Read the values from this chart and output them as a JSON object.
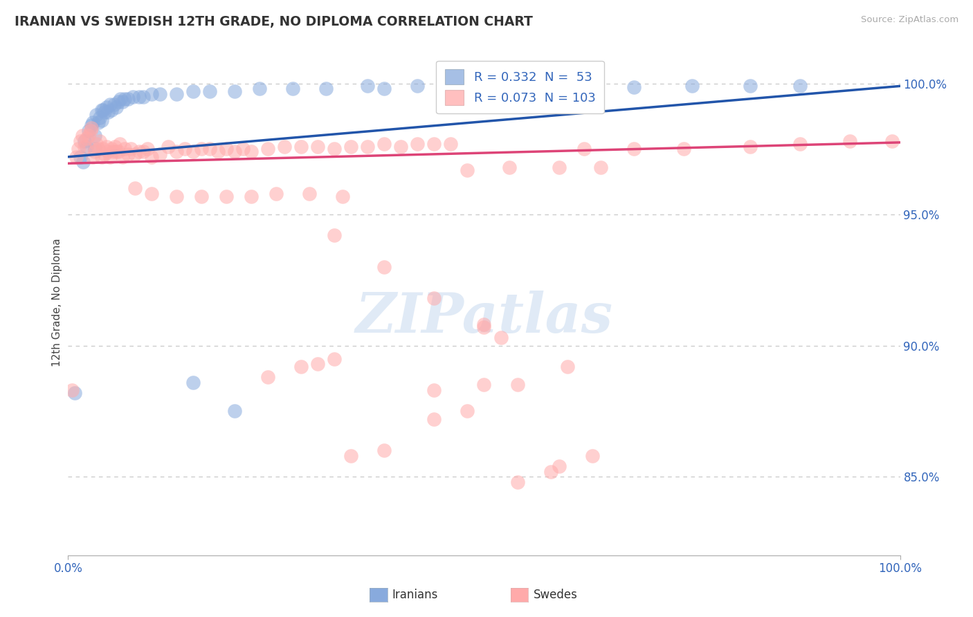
{
  "title": "IRANIAN VS SWEDISH 12TH GRADE, NO DIPLOMA CORRELATION CHART",
  "source": "Source: ZipAtlas.com",
  "ylabel": "12th Grade, No Diploma",
  "legend_iranian": "R = 0.332  N =  53",
  "legend_swedish": "R = 0.073  N = 103",
  "watermark": "ZIPatlas",
  "xlim": [
    0.0,
    1.0
  ],
  "ylim": [
    0.82,
    1.013
  ],
  "background_color": "#ffffff",
  "grid_color": "#cccccc",
  "iranian_color": "#88aadd",
  "swedish_color": "#ffaaaa",
  "iranian_line_color": "#2255aa",
  "swedish_line_color": "#dd4477",
  "ytick_values": [
    0.85,
    0.9,
    0.95,
    1.0
  ],
  "ytick_labels": [
    "85.0%",
    "90.0%",
    "95.0%",
    "100.0%"
  ],
  "iranian_x": [
    0.008,
    0.015,
    0.018,
    0.02,
    0.022,
    0.025,
    0.028,
    0.03,
    0.032,
    0.032,
    0.034,
    0.036,
    0.038,
    0.04,
    0.04,
    0.042,
    0.044,
    0.046,
    0.048,
    0.05,
    0.052,
    0.055,
    0.058,
    0.06,
    0.063,
    0.065,
    0.068,
    0.072,
    0.078,
    0.085,
    0.09,
    0.1,
    0.11,
    0.13,
    0.15,
    0.17,
    0.2,
    0.23,
    0.27,
    0.31,
    0.36,
    0.42,
    0.48,
    0.55,
    0.62,
    0.68,
    0.75,
    0.82,
    0.88,
    0.15,
    0.2,
    0.38,
    0.55
  ],
  "iranian_y": [
    0.882,
    0.972,
    0.97,
    0.978,
    0.976,
    0.982,
    0.984,
    0.985,
    0.98,
    0.975,
    0.988,
    0.985,
    0.987,
    0.99,
    0.986,
    0.99,
    0.989,
    0.991,
    0.989,
    0.992,
    0.99,
    0.992,
    0.991,
    0.993,
    0.994,
    0.993,
    0.994,
    0.994,
    0.995,
    0.995,
    0.995,
    0.996,
    0.996,
    0.996,
    0.997,
    0.997,
    0.997,
    0.998,
    0.998,
    0.998,
    0.999,
    0.999,
    0.999,
    0.9992,
    0.9988,
    0.9985,
    0.999,
    0.999,
    0.9992,
    0.886,
    0.875,
    0.998,
    0.9992
  ],
  "swedish_x": [
    0.005,
    0.01,
    0.012,
    0.015,
    0.017,
    0.02,
    0.022,
    0.025,
    0.027,
    0.028,
    0.03,
    0.032,
    0.034,
    0.036,
    0.038,
    0.04,
    0.042,
    0.044,
    0.046,
    0.048,
    0.05,
    0.052,
    0.054,
    0.056,
    0.058,
    0.06,
    0.062,
    0.065,
    0.068,
    0.072,
    0.075,
    0.08,
    0.085,
    0.09,
    0.095,
    0.1,
    0.11,
    0.12,
    0.13,
    0.14,
    0.15,
    0.16,
    0.17,
    0.18,
    0.19,
    0.2,
    0.21,
    0.22,
    0.24,
    0.26,
    0.28,
    0.3,
    0.32,
    0.34,
    0.36,
    0.38,
    0.4,
    0.42,
    0.44,
    0.46,
    0.08,
    0.1,
    0.13,
    0.16,
    0.19,
    0.22,
    0.25,
    0.29,
    0.33,
    0.48,
    0.53,
    0.59,
    0.64,
    0.32,
    0.38,
    0.44,
    0.5,
    0.5,
    0.52,
    0.54,
    0.58,
    0.59,
    0.63,
    0.62,
    0.68,
    0.74,
    0.82,
    0.88,
    0.94,
    0.34,
    0.38,
    0.44,
    0.48,
    0.54,
    0.6,
    0.24,
    0.28,
    0.3,
    0.32,
    0.44,
    0.5,
    0.99
  ],
  "swedish_y": [
    0.883,
    0.972,
    0.975,
    0.978,
    0.98,
    0.976,
    0.979,
    0.98,
    0.982,
    0.983,
    0.972,
    0.974,
    0.977,
    0.975,
    0.978,
    0.972,
    0.975,
    0.973,
    0.976,
    0.974,
    0.972,
    0.975,
    0.974,
    0.976,
    0.974,
    0.974,
    0.977,
    0.972,
    0.975,
    0.973,
    0.975,
    0.973,
    0.974,
    0.974,
    0.975,
    0.972,
    0.973,
    0.976,
    0.974,
    0.975,
    0.974,
    0.975,
    0.975,
    0.974,
    0.975,
    0.974,
    0.975,
    0.974,
    0.975,
    0.976,
    0.976,
    0.976,
    0.975,
    0.976,
    0.976,
    0.977,
    0.976,
    0.977,
    0.977,
    0.977,
    0.96,
    0.958,
    0.957,
    0.957,
    0.957,
    0.957,
    0.958,
    0.958,
    0.957,
    0.967,
    0.968,
    0.968,
    0.968,
    0.942,
    0.93,
    0.918,
    0.908,
    0.907,
    0.903,
    0.848,
    0.852,
    0.854,
    0.858,
    0.975,
    0.975,
    0.975,
    0.976,
    0.977,
    0.978,
    0.858,
    0.86,
    0.872,
    0.875,
    0.885,
    0.892,
    0.888,
    0.892,
    0.893,
    0.895,
    0.883,
    0.885,
    0.978
  ]
}
